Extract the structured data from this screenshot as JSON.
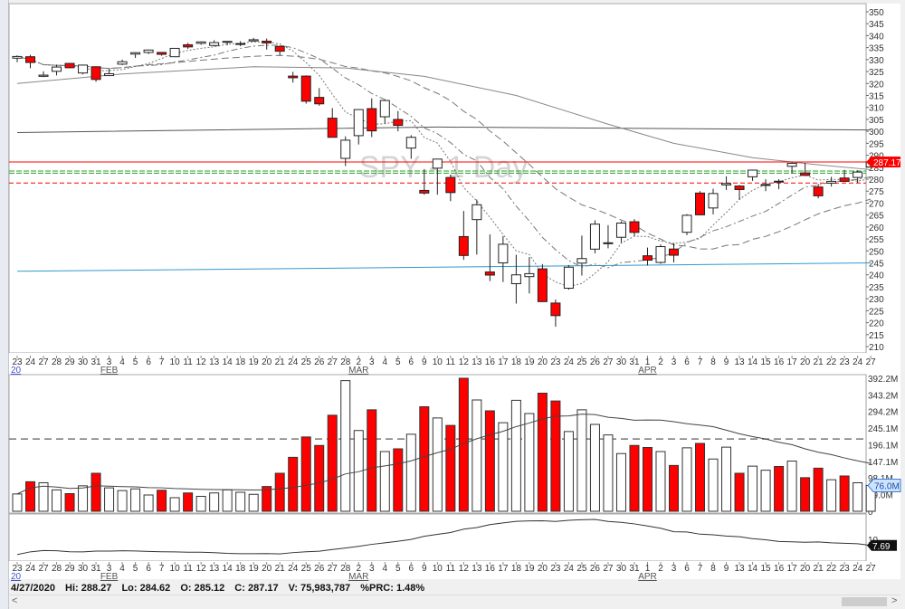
{
  "symbol_watermark": "SPY - 1 Day",
  "status": {
    "date": "4/27/2020",
    "hi": "Hi: 288.27",
    "lo": "Lo: 284.62",
    "open": "O: 285.12",
    "close": "C: 287.17",
    "volume": "V: 75,983,787",
    "pct": "%PRC: 1.48%"
  },
  "scroll_left": "<",
  "scroll_right": ">",
  "colors": {
    "down": "#ff0000",
    "up": "#ffffff",
    "last_price": "#ff0000",
    "support": "#2aa02a",
    "blue_line": "#3399cc",
    "volume_label": "#3a7fd5"
  },
  "chart_data": {
    "type": "candlestick",
    "year_label": "20",
    "months": [
      {
        "index": 7,
        "label": "FEB"
      },
      {
        "index": 26,
        "label": "MAR"
      },
      {
        "index": 48,
        "label": "APR"
      }
    ],
    "dates": [
      "23",
      "24",
      "27",
      "28",
      "29",
      "30",
      "31",
      "3",
      "4",
      "5",
      "6",
      "7",
      "10",
      "11",
      "12",
      "13",
      "14",
      "18",
      "19",
      "20",
      "21",
      "24",
      "25",
      "26",
      "27",
      "28",
      "2",
      "3",
      "4",
      "5",
      "6",
      "9",
      "10",
      "11",
      "12",
      "13",
      "16",
      "17",
      "18",
      "19",
      "20",
      "23",
      "24",
      "25",
      "26",
      "27",
      "30",
      "31",
      "1",
      "2",
      "3",
      "6",
      "7",
      "8",
      "9",
      "13",
      "14",
      "15",
      "16",
      "17",
      "20",
      "21",
      "22",
      "23",
      "24",
      "27"
    ],
    "ohlc": [
      [
        330.6,
        331.8,
        328.9,
        331.3
      ],
      [
        331.2,
        332.0,
        326.4,
        328.8
      ],
      [
        323.0,
        325.1,
        322.7,
        323.5
      ],
      [
        325.1,
        327.9,
        323.4,
        326.9
      ],
      [
        328.4,
        328.6,
        326.4,
        326.6
      ],
      [
        324.4,
        327.9,
        323.8,
        327.7
      ],
      [
        327.0,
        327.2,
        320.7,
        321.7
      ],
      [
        323.3,
        326.2,
        323.2,
        324.1
      ],
      [
        328.1,
        330.0,
        327.7,
        329.1
      ],
      [
        332.3,
        333.1,
        330.7,
        332.9
      ],
      [
        333.0,
        334.2,
        332.3,
        334.0
      ],
      [
        333.0,
        333.0,
        331.6,
        332.2
      ],
      [
        331.2,
        334.8,
        331.2,
        334.7
      ],
      [
        336.2,
        337.0,
        334.5,
        335.3
      ],
      [
        336.8,
        337.6,
        336.2,
        337.4
      ],
      [
        335.9,
        338.1,
        335.6,
        337.1
      ],
      [
        337.5,
        337.7,
        336.0,
        337.6
      ],
      [
        336.5,
        337.7,
        335.6,
        336.7
      ],
      [
        337.8,
        339.1,
        337.5,
        338.3
      ],
      [
        337.7,
        338.8,
        334.2,
        336.95
      ],
      [
        335.5,
        335.9,
        331.8,
        333.5
      ],
      [
        323.1,
        324.9,
        320.4,
        322.4
      ],
      [
        323.1,
        323.4,
        311.6,
        312.6
      ],
      [
        314.2,
        318.1,
        310.7,
        311.5
      ],
      [
        305.5,
        309.7,
        297.5,
        297.5
      ],
      [
        288.7,
        297.9,
        285.5,
        296.3
      ],
      [
        298.2,
        309.2,
        294.5,
        309.1
      ],
      [
        309.5,
        313.8,
        297.6,
        300.2
      ],
      [
        306.1,
        313.1,
        303.3,
        312.9
      ],
      [
        304.98,
        308.5,
        300.0,
        302.5
      ],
      [
        293.0,
        298.4,
        288.5,
        297.5
      ],
      [
        275.3,
        284.2,
        273.5,
        274.2
      ],
      [
        284.6,
        288.5,
        273.5,
        288.4
      ],
      [
        280.7,
        281.9,
        270.8,
        274.4
      ],
      [
        256.0,
        266.7,
        246.3,
        248.1
      ],
      [
        263.1,
        271.5,
        248.5,
        269.3
      ],
      [
        241.2,
        256.9,
        237.4,
        239.9
      ],
      [
        245.0,
        256.2,
        237.0,
        252.8
      ],
      [
        236.3,
        248.4,
        228.0,
        240.0
      ],
      [
        239.25,
        247.4,
        232.2,
        240.5
      ],
      [
        242.5,
        244.5,
        228.8,
        228.8
      ],
      [
        228.2,
        229.7,
        218.3,
        222.95
      ],
      [
        234.4,
        244.1,
        233.8,
        243.2
      ],
      [
        244.9,
        256.4,
        239.7,
        246.8
      ],
      [
        250.75,
        262.8,
        249.0,
        261.2
      ],
      [
        253.3,
        260.8,
        251.1,
        253.4
      ],
      [
        255.7,
        262.4,
        253.5,
        261.65
      ],
      [
        262.2,
        263.3,
        256.2,
        257.75
      ],
      [
        247.98,
        251.4,
        243.9,
        246.15
      ],
      [
        245.2,
        252.7,
        244.6,
        251.8
      ],
      [
        250.8,
        253.3,
        245.2,
        248.2
      ],
      [
        257.8,
        265.4,
        256.6,
        264.9
      ],
      [
        274.2,
        275.0,
        264.9,
        265.1
      ],
      [
        267.96,
        276.0,
        265.3,
        274.0
      ],
      [
        277.6,
        281.2,
        275.5,
        278.2
      ],
      [
        277.14,
        277.5,
        271.4,
        275.66
      ],
      [
        280.98,
        284.0,
        279.3,
        283.79
      ],
      [
        277.57,
        280.0,
        275.0,
        277.76
      ],
      [
        279.15,
        280.0,
        275.8,
        279.1
      ],
      [
        285.38,
        287.3,
        282.4,
        286.64
      ],
      [
        282.61,
        286.8,
        281.35,
        281.59
      ],
      [
        276.73,
        278.0,
        272.0,
        273.04
      ],
      [
        278.35,
        281.0,
        276.9,
        279.1
      ],
      [
        280.49,
        283.9,
        278.9,
        279.08
      ],
      [
        280.73,
        283.7,
        278.5,
        282.97
      ],
      [
        285.12,
        288.27,
        284.62,
        287.17
      ]
    ],
    "volume_m": [
      51,
      87,
      84,
      63,
      52,
      75,
      112,
      69,
      61,
      66,
      48,
      62,
      40,
      54,
      44,
      54,
      63,
      56,
      50,
      73,
      112,
      159,
      219,
      194,
      283,
      385,
      238,
      299,
      176,
      184,
      227,
      308,
      275,
      253,
      392,
      328,
      296,
      261,
      327,
      288,
      348,
      325,
      235,
      299,
      256,
      225,
      170,
      194,
      188,
      176,
      135,
      187,
      200,
      154,
      189,
      112,
      133,
      121,
      132,
      148,
      99,
      127,
      93,
      104,
      84,
      76
    ],
    "volume_dashed_level_m": 213,
    "price_axis": {
      "min": 210,
      "max": 350,
      "step": 5
    },
    "volume_axis_labels": [
      "392.2M",
      "343.2M",
      "294.2M",
      "245.1M",
      "196.1M",
      "147.1M",
      "98.1M",
      "49.0M",
      "0"
    ],
    "volume_axis_values": [
      392.2,
      343.2,
      294.2,
      245.1,
      196.1,
      147.1,
      98.1,
      49.0,
      0
    ],
    "last_price_label": "287.17",
    "last_volume_label": "76.0M",
    "indicator_tick": "10",
    "indicator_last_label": "7.69",
    "levels": {
      "last_price": 287.17,
      "support_1": 283.4,
      "support_2": 282.5,
      "resistance_dashed": 278.4
    },
    "ma200": [
      [
        0,
        299.5
      ],
      [
        32,
        301.8
      ],
      [
        65,
        300.6
      ]
    ],
    "blue_trend": [
      [
        0,
        241.5
      ],
      [
        65,
        245.0
      ]
    ],
    "ma50": [
      [
        0,
        320
      ],
      [
        8,
        324
      ],
      [
        18,
        327
      ],
      [
        25,
        326.5
      ],
      [
        31,
        323
      ],
      [
        38,
        315
      ],
      [
        45,
        303
      ],
      [
        50,
        295
      ],
      [
        56,
        289
      ],
      [
        61,
        286
      ],
      [
        65,
        284
      ]
    ]
  }
}
